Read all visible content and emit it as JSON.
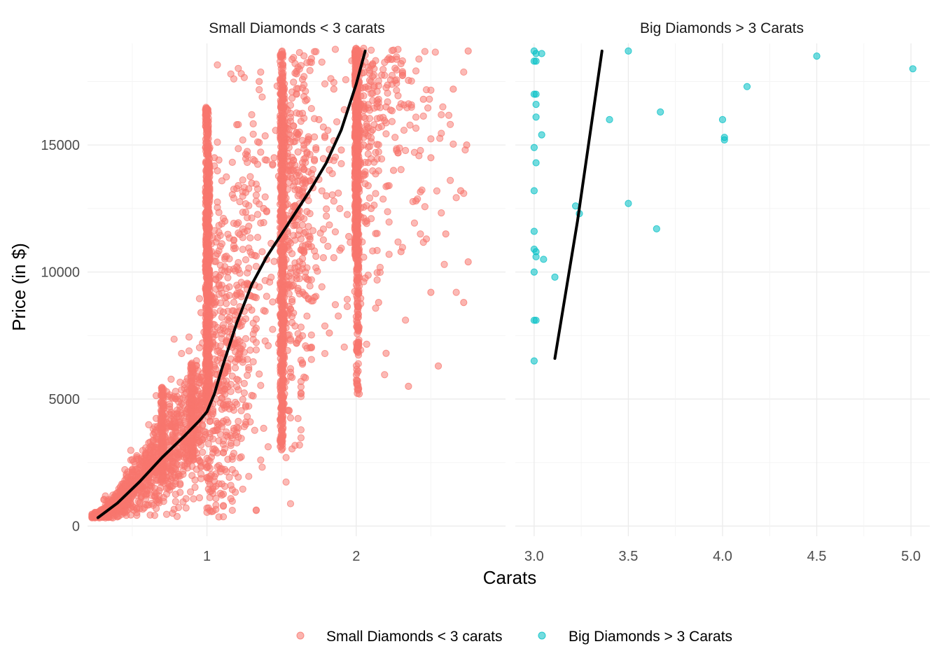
{
  "colors": {
    "small": "#F8766D",
    "big": "#00BFC4",
    "trend": "#000000"
  },
  "axes": {
    "xlabel": "Carats",
    "ylabel": "Price (in $)"
  },
  "legend": {
    "position": "bottom",
    "items": [
      {
        "label": "Small Diamonds < 3 carats",
        "color": "#F8766D"
      },
      {
        "label": "Big Diamonds > 3 Carats",
        "color": "#00BFC4"
      }
    ]
  },
  "chart_data": [
    {
      "type": "scatter",
      "title": "Small Diamonds < 3 carats",
      "xlabel": "Carats",
      "ylabel": "Price (in $)",
      "xlim": [
        0.2,
        3.0
      ],
      "ylim": [
        -400,
        19000
      ],
      "x_ticks": [
        1,
        2
      ],
      "x_tick_labels": [
        "1",
        "2"
      ],
      "y_ticks": [
        0,
        5000,
        10000,
        15000
      ],
      "y_tick_labels": [
        "0",
        "5000",
        "10000",
        "15000"
      ],
      "grid": true,
      "series": [
        {
          "name": "Small Diamonds < 3 carats",
          "color": "#F8766D",
          "opacity": 0.55,
          "points": [
            [
              0.23,
              326
            ],
            [
              0.25,
              400
            ],
            [
              0.3,
              420
            ],
            [
              0.3,
              650
            ],
            [
              0.32,
              560
            ],
            [
              0.33,
              780
            ],
            [
              0.35,
              900
            ],
            [
              0.38,
              950
            ],
            [
              0.4,
              1050
            ],
            [
              0.42,
              1300
            ],
            [
              0.45,
              1600
            ],
            [
              0.5,
              1800
            ],
            [
              0.5,
              2200
            ],
            [
              0.52,
              1500
            ],
            [
              0.55,
              2100
            ],
            [
              0.57,
              2500
            ],
            [
              0.6,
              2300
            ],
            [
              0.62,
              2800
            ],
            [
              0.66,
              3200
            ],
            [
              0.7,
              3600
            ],
            [
              0.7,
              2500
            ],
            [
              0.72,
              4200
            ],
            [
              0.75,
              4800
            ],
            [
              0.77,
              3900
            ],
            [
              0.8,
              4400
            ],
            [
              0.82,
              5000
            ],
            [
              0.85,
              3500
            ],
            [
              0.88,
              4300
            ],
            [
              0.9,
              4800
            ],
            [
              0.9,
              2800
            ],
            [
              0.92,
              6200
            ],
            [
              0.96,
              8400
            ],
            [
              1.0,
              16000
            ],
            [
              1.0,
              13000
            ],
            [
              1.0,
              9000
            ],
            [
              1.0,
              6000
            ],
            [
              1.0,
              4500
            ],
            [
              1.01,
              11500
            ],
            [
              1.02,
              7200
            ],
            [
              1.05,
              14500
            ],
            [
              1.08,
              9800
            ],
            [
              1.1,
              6400
            ],
            [
              1.12,
              12000
            ],
            [
              1.15,
              8200
            ],
            [
              1.2,
              15800
            ],
            [
              1.2,
              10200
            ],
            [
              1.22,
              7000
            ],
            [
              1.25,
              9500
            ],
            [
              1.28,
              11800
            ],
            [
              1.3,
              13500
            ],
            [
              1.3,
              8500
            ],
            [
              1.35,
              17500
            ],
            [
              1.38,
              12500
            ],
            [
              1.4,
              10500
            ],
            [
              1.45,
              14500
            ],
            [
              1.5,
              18500
            ],
            [
              1.5,
              16500
            ],
            [
              1.5,
              12000
            ],
            [
              1.5,
              8000
            ],
            [
              1.5,
              5200
            ],
            [
              1.5,
              3000
            ],
            [
              1.51,
              11000
            ],
            [
              1.55,
              9500
            ],
            [
              1.6,
              17800
            ],
            [
              1.6,
              13800
            ],
            [
              1.6,
              7200
            ],
            [
              1.65,
              15000
            ],
            [
              1.7,
              18400
            ],
            [
              1.7,
              11000
            ],
            [
              1.72,
              9000
            ],
            [
              1.75,
              16000
            ],
            [
              1.8,
              13000
            ],
            [
              1.82,
              7600
            ],
            [
              1.85,
              17200
            ],
            [
              1.9,
              14800
            ],
            [
              1.95,
              11400
            ],
            [
              2.0,
              18800
            ],
            [
              2.0,
              16000
            ],
            [
              2.0,
              13500
            ],
            [
              2.0,
              10500
            ],
            [
              2.01,
              8500
            ],
            [
              2.02,
              5200
            ],
            [
              2.05,
              15000
            ],
            [
              2.1,
              17500
            ],
            [
              2.1,
              12500
            ],
            [
              2.15,
              8800
            ],
            [
              2.2,
              16500
            ],
            [
              2.2,
              6800
            ],
            [
              2.25,
              14000
            ],
            [
              2.3,
              18200
            ],
            [
              2.3,
              10800
            ],
            [
              2.35,
              5500
            ],
            [
              2.4,
              12800
            ],
            [
              2.45,
              16800
            ],
            [
              2.5,
              9200
            ],
            [
              2.5,
              14500
            ],
            [
              2.55,
              6300
            ],
            [
              2.6,
              11500
            ],
            [
              2.65,
              17200
            ],
            [
              2.7,
              13200
            ],
            [
              2.74,
              15000
            ],
            [
              2.75,
              18700
            ],
            [
              2.75,
              10400
            ],
            [
              2.72,
              8800
            ]
          ]
        },
        {
          "name": "trend",
          "color": "#000000",
          "type": "line",
          "points": [
            [
              0.27,
              330
            ],
            [
              0.4,
              900
            ],
            [
              0.55,
              1750
            ],
            [
              0.7,
              2700
            ],
            [
              0.85,
              3550
            ],
            [
              0.95,
              4150
            ],
            [
              1.0,
              4500
            ],
            [
              1.05,
              5200
            ],
            [
              1.1,
              6200
            ],
            [
              1.2,
              8000
            ],
            [
              1.3,
              9500
            ],
            [
              1.4,
              10600
            ],
            [
              1.5,
              11500
            ],
            [
              1.6,
              12400
            ],
            [
              1.7,
              13300
            ],
            [
              1.8,
              14300
            ],
            [
              1.9,
              15600
            ],
            [
              2.0,
              17400
            ],
            [
              2.06,
              18700
            ]
          ]
        }
      ]
    },
    {
      "type": "scatter",
      "title": "Big Diamonds > 3 Carats",
      "xlabel": "Carats",
      "ylabel": "Price (in $)",
      "xlim": [
        2.9,
        5.1
      ],
      "ylim": [
        -400,
        19000
      ],
      "x_ticks": [
        3.0,
        3.5,
        4.0,
        4.5,
        5.0
      ],
      "x_tick_labels": [
        "3.0",
        "3.5",
        "4.0",
        "4.5",
        "5.0"
      ],
      "y_ticks": [
        0,
        5000,
        10000,
        15000
      ],
      "grid": true,
      "series": [
        {
          "name": "Big Diamonds > 3 Carats",
          "color": "#00BFC4",
          "opacity": 0.55,
          "points": [
            [
              3.0,
              18700
            ],
            [
              3.01,
              18600
            ],
            [
              3.0,
              18300
            ],
            [
              3.01,
              18300
            ],
            [
              3.04,
              18600
            ],
            [
              3.0,
              17000
            ],
            [
              3.01,
              17000
            ],
            [
              3.01,
              16600
            ],
            [
              3.01,
              16100
            ],
            [
              3.04,
              15400
            ],
            [
              3.0,
              14900
            ],
            [
              3.01,
              14300
            ],
            [
              3.0,
              13200
            ],
            [
              3.0,
              11600
            ],
            [
              3.0,
              10900
            ],
            [
              3.01,
              10800
            ],
            [
              3.01,
              10600
            ],
            [
              3.05,
              10500
            ],
            [
              3.0,
              10000
            ],
            [
              3.11,
              9800
            ],
            [
              3.0,
              8100
            ],
            [
              3.01,
              8100
            ],
            [
              3.0,
              6500
            ],
            [
              3.22,
              12600
            ],
            [
              3.24,
              12300
            ],
            [
              3.4,
              16000
            ],
            [
              3.5,
              18700
            ],
            [
              3.5,
              12700
            ],
            [
              3.65,
              11700
            ],
            [
              3.67,
              16300
            ],
            [
              4.0,
              16000
            ],
            [
              4.01,
              15300
            ],
            [
              4.01,
              15200
            ],
            [
              4.13,
              17300
            ],
            [
              4.5,
              18500
            ],
            [
              5.01,
              18000
            ]
          ]
        },
        {
          "name": "trend",
          "color": "#000000",
          "type": "line",
          "points": [
            [
              3.11,
              6600
            ],
            [
              3.23,
              12000
            ],
            [
              3.36,
              18700
            ]
          ]
        }
      ]
    }
  ]
}
